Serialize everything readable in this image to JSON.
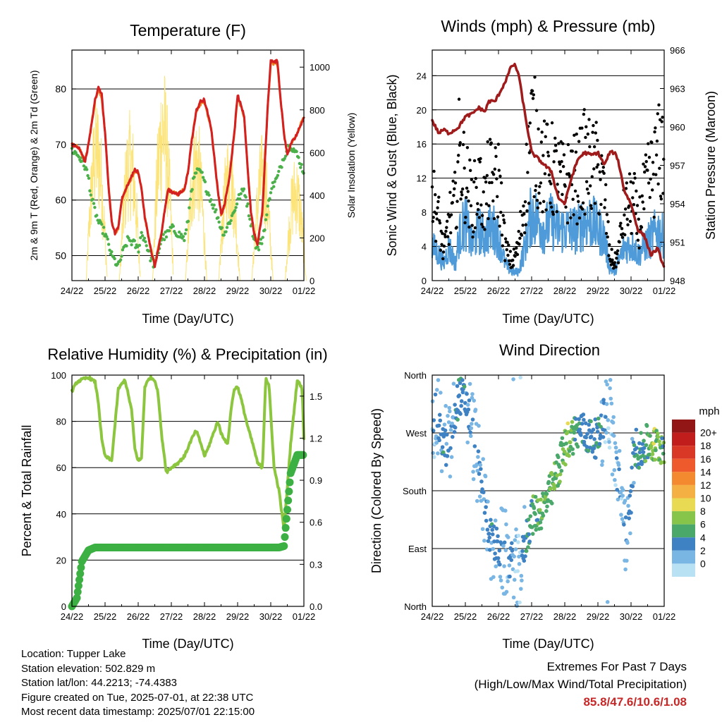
{
  "panels": {
    "temperature": {
      "title": "Temperature (F)",
      "xlabel": "Time (Day/UTC)",
      "ylabel_left": "2m & 9m T (Red, Orange) & 2m Td (Green)",
      "ylabel_right": "Solar Insolation (Yellow)"
    },
    "winds": {
      "title": "Winds (mph) & Pressure (mb)",
      "xlabel": "Time (Day/UTC)",
      "ylabel_left": "Sonic Wind & Gust (Blue, Black)",
      "ylabel_right": "Station Pressure (Maroon)"
    },
    "humidity": {
      "title": "Relative Humidity (%) & Precipitation (in)",
      "xlabel": "Time (Day/UTC)",
      "ylabel_left": "Percent & Total Rainfall"
    },
    "direction": {
      "title": "Wind Direction",
      "xlabel": "Time (Day/UTC)",
      "ylabel_left": "Direction (Colored By Speed)",
      "legend_title": "mph"
    }
  },
  "info": {
    "location": "Location: Tupper Lake",
    "elevation": "Station elevation: 502.829 m",
    "latlon": "Station lat/lon: 44.2213; -74.4383",
    "created": "Figure created on Tue, 2025-07-01, at 22:38 UTC",
    "recent": "Most recent data timestamp: 2025/07/01 22:15:00"
  },
  "extremes": {
    "line1": "Extremes For Past 7 Days",
    "line2": "(High/Low/Max Wind/Total Precipitation)",
    "values": "85.8/47.6/10.6/1.08"
  },
  "colors": {
    "temp2m": "#d42020",
    "temp9m": "#f0801e",
    "dewpoint": "#4bb04a",
    "solar": "#fce47a",
    "wind": "#4f9bd9",
    "gust": "#000000",
    "pressure": "#a01c1c",
    "rh": "#8cc63f",
    "precip": "#3cb043"
  },
  "chart_data": [
    {
      "type": "line",
      "title": "Temperature (F)",
      "xlabel": "Time (Day/UTC)",
      "ylabel": "2m & 9m T (Red, Orange) & 2m Td (Green)",
      "y2label": "Solar Insolation (Yellow)",
      "x_ticks": [
        "24/22",
        "25/22",
        "26/22",
        "27/22",
        "28/22",
        "29/22",
        "30/22",
        "01/22"
      ],
      "ylim": [
        45.5,
        87
      ],
      "y_ticks": [
        50,
        60,
        70,
        80
      ],
      "y2lim": [
        0,
        1000
      ],
      "y2_ticks": [
        0,
        200,
        400,
        600,
        800,
        1000
      ],
      "x": [
        0,
        0.2,
        0.4,
        0.5,
        0.6,
        0.7,
        0.8,
        0.9,
        1.0,
        1.1,
        1.2,
        1.3,
        1.4,
        1.5,
        1.7,
        1.9,
        2.0,
        2.1,
        2.2,
        2.35,
        2.5,
        2.7,
        2.9,
        3.0,
        3.2,
        3.4,
        3.5,
        3.6,
        3.75,
        3.9,
        4.0,
        4.2,
        4.4,
        4.5,
        4.6,
        4.75,
        4.9,
        5.0,
        5.2,
        5.3,
        5.4,
        5.5,
        5.6,
        5.75,
        5.9,
        6.0,
        6.2,
        6.3,
        6.4,
        6.5,
        6.6,
        6.8,
        7.0
      ],
      "series": [
        {
          "name": "2m T",
          "values": [
            70,
            69.5,
            67,
            70,
            74,
            78,
            80.5,
            79,
            72,
            63,
            56,
            54,
            55,
            60,
            63,
            65.5,
            65,
            62,
            57,
            52,
            48,
            54,
            62,
            61.5,
            61,
            62,
            65,
            70,
            76,
            78,
            78,
            73,
            62,
            57.5,
            59,
            64,
            72,
            79,
            75,
            66,
            58,
            54,
            52,
            58,
            76,
            85,
            85,
            78,
            72,
            68,
            70,
            72,
            75
          ]
        },
        {
          "name": "9m T",
          "values": [
            70,
            69.5,
            67,
            70,
            74,
            78,
            80,
            78.5,
            72,
            63,
            56,
            54,
            55,
            60,
            63,
            65,
            65,
            62,
            57,
            52,
            48.5,
            54,
            62,
            61.5,
            61,
            62,
            65,
            70,
            76,
            77.5,
            77.5,
            73,
            62,
            57.5,
            59,
            64,
            72,
            78.5,
            75,
            66,
            58,
            54,
            52,
            58,
            76,
            84.5,
            84.5,
            78,
            72,
            68,
            70,
            72,
            75
          ]
        },
        {
          "name": "2m Td",
          "values": [
            69,
            68,
            66,
            64,
            60,
            58,
            56,
            55,
            54,
            52,
            50,
            49,
            48,
            50,
            53,
            52,
            51,
            54,
            53,
            50,
            48,
            53,
            54,
            55,
            54,
            53,
            56,
            62,
            65,
            65,
            63,
            60,
            57,
            55,
            54,
            56,
            58,
            60,
            62,
            59,
            56,
            53,
            51,
            53,
            58,
            62,
            64,
            66,
            68,
            69,
            70,
            68,
            65
          ]
        }
      ],
      "solar_peaks": [
        {
          "day": 0.75,
          "peak": 880
        },
        {
          "day": 1.75,
          "peak": 800
        },
        {
          "day": 2.75,
          "peak": 1030
        },
        {
          "day": 3.75,
          "peak": 800
        },
        {
          "day": 4.75,
          "peak": 720
        },
        {
          "day": 5.75,
          "peak": 700
        },
        {
          "day": 6.75,
          "peak": 600
        }
      ]
    },
    {
      "type": "line",
      "title": "Winds (mph) & Pressure (mb)",
      "xlabel": "Time (Day/UTC)",
      "ylabel": "Sonic Wind & Gust (Blue, Black)",
      "y2label": "Station Pressure (Maroon)",
      "x_ticks": [
        "24/22",
        "25/22",
        "26/22",
        "27/22",
        "28/22",
        "29/22",
        "30/22",
        "01/22"
      ],
      "ylim": [
        0,
        27
      ],
      "y_ticks": [
        0,
        4,
        8,
        12,
        16,
        20,
        24
      ],
      "y2lim": [
        948,
        966
      ],
      "y2_ticks": [
        948,
        951,
        954,
        957,
        960,
        963,
        966
      ],
      "x": [
        0,
        0.2,
        0.35,
        0.5,
        0.7,
        0.8,
        1.0,
        1.2,
        1.4,
        1.6,
        1.7,
        1.9,
        2.0,
        2.2,
        2.4,
        2.5,
        2.6,
        2.8,
        3.0,
        3.2,
        3.4,
        3.6,
        3.8,
        4.0,
        4.2,
        4.4,
        4.6,
        4.8,
        5.0,
        5.2,
        5.35,
        5.5,
        5.6,
        5.8,
        6.0,
        6.1,
        6.2,
        6.4,
        6.6,
        6.8,
        7.0
      ],
      "series": [
        {
          "name": "Pressure",
          "values": [
            960.5,
            959.5,
            959.8,
            959.5,
            959.8,
            960.0,
            960.8,
            961.0,
            961.5,
            961.2,
            962.0,
            962.0,
            962.5,
            963.5,
            964.8,
            964.8,
            964.2,
            961.0,
            958.0,
            957.5,
            957.0,
            956.5,
            954.5,
            954.0,
            956.0,
            957.5,
            958.0,
            957.8,
            958.0,
            957.0,
            958.0,
            958.0,
            957.5,
            955.0,
            954.0,
            953.0,
            952.0,
            951.5,
            950.0,
            950.5,
            949.0
          ]
        },
        {
          "name": "Wind",
          "values": [
            4,
            3,
            2,
            4,
            2,
            5,
            7,
            4,
            6,
            5,
            6,
            6,
            5,
            2,
            1,
            1,
            1,
            4,
            8,
            7,
            6,
            7,
            6,
            6,
            6,
            6,
            7,
            7,
            6,
            5,
            1.5,
            1,
            2,
            4,
            4,
            4,
            3,
            4,
            5,
            6,
            5
          ]
        },
        {
          "name": "Gust",
          "values": [
            10,
            7,
            3,
            7,
            9,
            15,
            12,
            9,
            11,
            9,
            12,
            11,
            12,
            4,
            2,
            3,
            4,
            10,
            18,
            15,
            13,
            13,
            12,
            11,
            12,
            12,
            14,
            13,
            13,
            10,
            3,
            2,
            3,
            8,
            9,
            9,
            6,
            10,
            12,
            14,
            16
          ]
        }
      ]
    },
    {
      "type": "line",
      "title": "Relative Humidity (%) & Precipitation (in)",
      "xlabel": "Time (Day/UTC)",
      "ylabel": "Percent & Total Rainfall",
      "x_ticks": [
        "24/22",
        "25/22",
        "26/22",
        "27/22",
        "28/22",
        "29/22",
        "30/22",
        "01/22"
      ],
      "ylim": [
        0,
        100
      ],
      "y_ticks": [
        0,
        20,
        40,
        60,
        80,
        100
      ],
      "y2lim": [
        0,
        1.65
      ],
      "y2_ticks": [
        0.0,
        0.3,
        0.6,
        0.9,
        1.2,
        1.5
      ],
      "x": [
        0,
        0.15,
        0.3,
        0.5,
        0.7,
        0.8,
        0.9,
        1.0,
        1.2,
        1.4,
        1.6,
        1.8,
        1.9,
        2.0,
        2.1,
        2.2,
        2.35,
        2.5,
        2.6,
        2.7,
        2.85,
        3.0,
        3.2,
        3.4,
        3.6,
        3.75,
        3.9,
        4.0,
        4.1,
        4.2,
        4.4,
        4.5,
        4.7,
        4.8,
        4.9,
        5.0,
        5.1,
        5.3,
        5.5,
        5.6,
        5.75,
        5.85,
        5.95,
        6.1,
        6.25,
        6.4,
        6.6,
        6.8,
        6.95,
        7.0
      ],
      "series": [
        {
          "name": "Relative Humidity",
          "values": [
            93,
            97,
            98,
            99,
            97,
            88,
            72,
            65,
            63,
            94,
            98,
            85,
            68,
            63,
            64,
            95,
            99,
            98,
            92,
            75,
            58,
            60,
            62,
            65,
            72,
            76,
            70,
            65,
            68,
            72,
            80,
            75,
            70,
            85,
            94,
            95,
            90,
            78,
            68,
            62,
            60,
            99,
            95,
            60,
            50,
            33,
            70,
            98,
            94,
            72
          ]
        },
        {
          "name": "Total Precipitation",
          "values": [
            0,
            0.06,
            0.32,
            0.4,
            0.42,
            0.42,
            0.42,
            0.42,
            0.42,
            0.42,
            0.42,
            0.42,
            0.42,
            0.42,
            0.42,
            0.42,
            0.42,
            0.42,
            0.42,
            0.42,
            0.42,
            0.42,
            0.42,
            0.42,
            0.42,
            0.42,
            0.42,
            0.42,
            0.42,
            0.42,
            0.42,
            0.42,
            0.42,
            0.42,
            0.42,
            0.42,
            0.42,
            0.42,
            0.42,
            0.42,
            0.42,
            0.42,
            0.42,
            0.42,
            0.42,
            0.43,
            0.95,
            1.08,
            1.08,
            1.08
          ]
        }
      ]
    },
    {
      "type": "scatter",
      "title": "Wind Direction",
      "xlabel": "Time (Day/UTC)",
      "ylabel": "Direction (Colored By Speed)",
      "x_ticks": [
        "24/22",
        "25/22",
        "26/22",
        "27/22",
        "28/22",
        "29/22",
        "30/22",
        "01/22"
      ],
      "y_ticks": [
        "North",
        "East",
        "South",
        "West",
        "North"
      ],
      "y_ticks_deg": [
        0,
        90,
        180,
        270,
        360
      ],
      "ylim": [
        0,
        360
      ],
      "x": [
        0.1,
        0.3,
        0.5,
        0.8,
        1.0,
        1.2,
        1.5,
        1.8,
        2.0,
        2.2,
        2.4,
        2.6,
        2.8,
        3.0,
        3.3,
        3.6,
        3.9,
        4.1,
        4.3,
        4.5,
        4.7,
        5.0,
        5.3,
        5.6,
        5.9,
        6.1,
        6.3,
        6.5,
        6.7,
        6.9
      ],
      "y": [
        300,
        260,
        240,
        330,
        320,
        280,
        180,
        100,
        90,
        80,
        70,
        40,
        100,
        140,
        150,
        180,
        230,
        260,
        270,
        275,
        265,
        260,
        320,
        200,
        100,
        250,
        240,
        255,
        250,
        250
      ],
      "speed": [
        2,
        4,
        3,
        5,
        4,
        2,
        3,
        4,
        3,
        2,
        3,
        1,
        4,
        6,
        6,
        7,
        7,
        8,
        6,
        5,
        4,
        5,
        1,
        2,
        3,
        4,
        5,
        6,
        8,
        6
      ],
      "legend": {
        "title": "mph",
        "labels": [
          "20+",
          "18",
          "16",
          "14",
          "12",
          "10",
          "8",
          "6",
          "4",
          "2",
          "0"
        ],
        "colors": [
          "#931616",
          "#c21d1d",
          "#d93827",
          "#ee5a2b",
          "#f48a2f",
          "#f4b042",
          "#e8da52",
          "#86c44a",
          "#4aa86a",
          "#3f82c4",
          "#7ab6e4",
          "#b9e1f4"
        ]
      }
    }
  ]
}
